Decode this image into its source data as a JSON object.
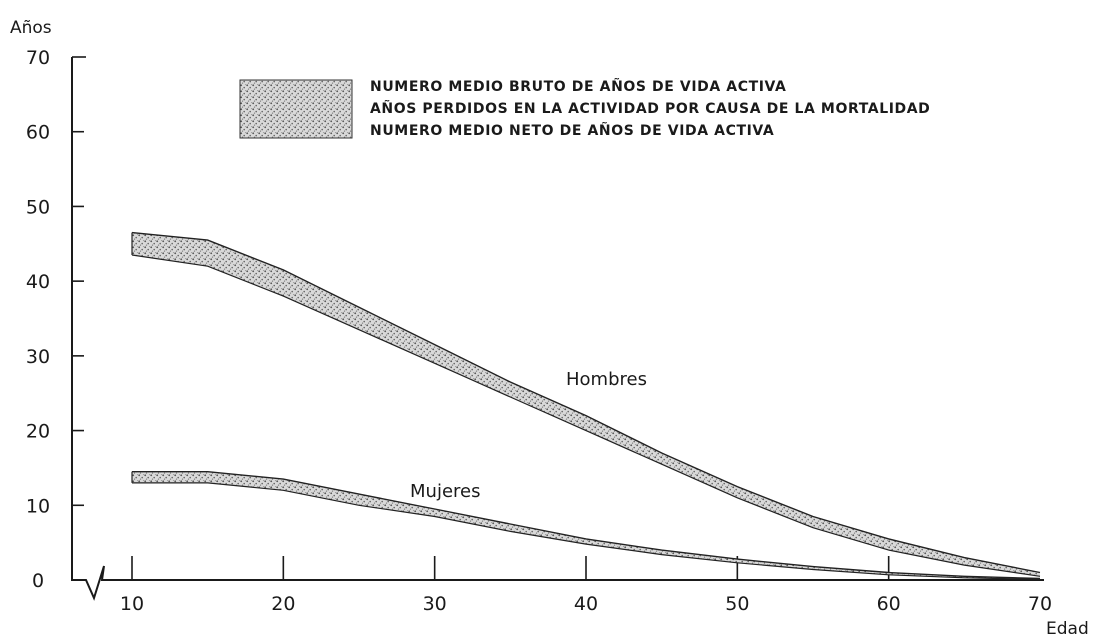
{
  "chart_data": {
    "type": "area",
    "title": "",
    "ylabel": "Años",
    "xlabel": "Edad",
    "xlim": [
      10,
      70
    ],
    "ylim": [
      0,
      70
    ],
    "x_ticks": [
      10,
      20,
      30,
      40,
      50,
      60,
      70
    ],
    "y_ticks": [
      0,
      10,
      20,
      30,
      40,
      50,
      60,
      70
    ],
    "legend": {
      "placement": "top-right",
      "entries": [
        "NUMERO MEDIO BRUTO DE AÑOS DE VIDA ACTIVA",
        "AÑOS PERDIDOS EN LA ACTIVIDAD POR CAUSA DE LA MORTALIDAD",
        "NUMERO MEDIO NETO DE AÑOS DE VIDA ACTIVA"
      ]
    },
    "series": [
      {
        "name": "Hombres",
        "x": [
          10,
          15,
          20,
          25,
          30,
          35,
          40,
          45,
          50,
          55,
          60,
          65,
          70
        ],
        "bruto": [
          46.5,
          45.5,
          41.5,
          36.5,
          31.5,
          26.5,
          22.0,
          17.0,
          12.5,
          8.5,
          5.5,
          3.0,
          1.0
        ],
        "neto": [
          43.5,
          42.0,
          38.0,
          33.5,
          29.0,
          24.5,
          20.0,
          15.5,
          11.0,
          7.0,
          4.0,
          2.0,
          0.5
        ]
      },
      {
        "name": "Mujeres",
        "x": [
          10,
          15,
          20,
          25,
          30,
          35,
          40,
          45,
          50,
          55,
          60,
          65,
          70
        ],
        "bruto": [
          14.5,
          14.5,
          13.5,
          11.5,
          9.5,
          7.5,
          5.5,
          4.0,
          2.8,
          1.8,
          1.0,
          0.5,
          0.2
        ],
        "neto": [
          13.0,
          13.0,
          12.0,
          10.0,
          8.5,
          6.5,
          4.8,
          3.4,
          2.3,
          1.4,
          0.7,
          0.3,
          0.1
        ]
      }
    ]
  }
}
